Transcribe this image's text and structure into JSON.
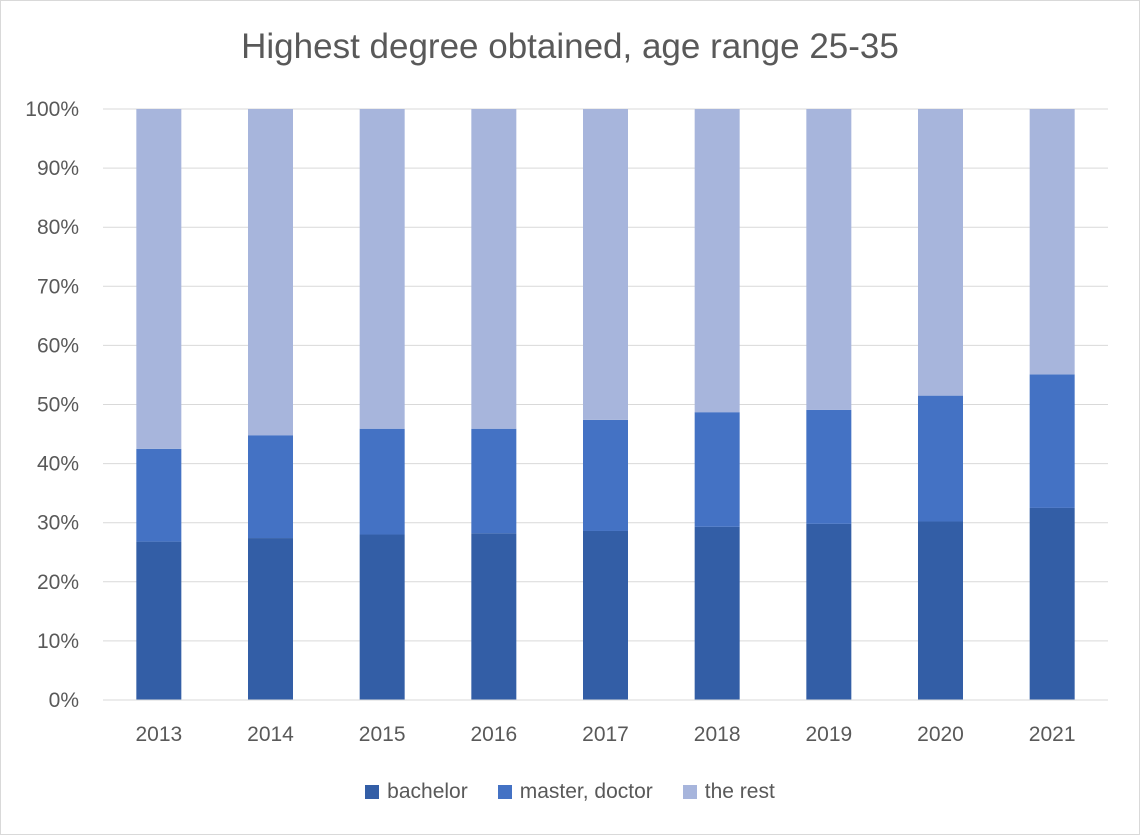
{
  "chart_data": {
    "type": "bar",
    "stacked": "percent",
    "title": "Highest degree obtained, age range 25-35",
    "xlabel": "",
    "ylabel": "",
    "categories": [
      "2013",
      "2014",
      "2015",
      "2016",
      "2017",
      "2018",
      "2019",
      "2020",
      "2021"
    ],
    "ylim": [
      0,
      100
    ],
    "yticks": [
      "0%",
      "10%",
      "20%",
      "30%",
      "40%",
      "50%",
      "60%",
      "70%",
      "80%",
      "90%",
      "100%"
    ],
    "grid": true,
    "legend_position": "bottom",
    "series": [
      {
        "name": "bachelor",
        "color": "#335ea6",
        "values": [
          26.8,
          27.4,
          28.0,
          28.2,
          28.6,
          29.3,
          29.8,
          30.2,
          32.5
        ]
      },
      {
        "name": "master, doctor",
        "color": "#4472c4",
        "values": [
          15.7,
          17.4,
          17.9,
          17.7,
          18.8,
          19.4,
          19.3,
          21.3,
          22.6
        ]
      },
      {
        "name": "the rest",
        "color": "#a7b5dc",
        "values": [
          57.5,
          55.2,
          54.1,
          54.1,
          52.6,
          51.3,
          50.9,
          48.5,
          44.9
        ]
      }
    ]
  }
}
